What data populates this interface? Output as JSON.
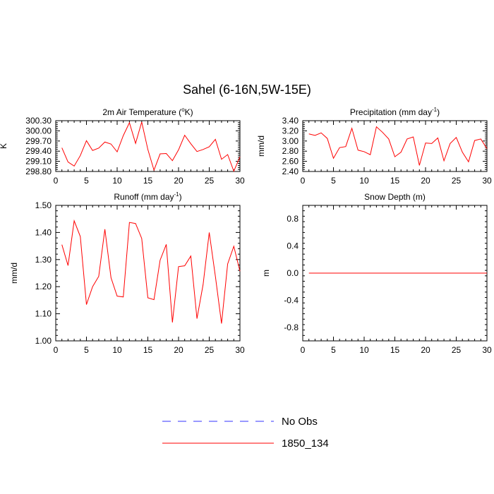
{
  "title": "Sahel (6-16N,5W-15E)",
  "legend": [
    {
      "label": "No Obs",
      "color": "#3333ff",
      "dash": true
    },
    {
      "label": "1850_134",
      "color": "#ff0000",
      "dash": false
    }
  ],
  "chart_data": [
    {
      "type": "line",
      "title": "2m Air Temperature (",
      "title_sup": "o",
      "title_tail": "K)",
      "ylabel": "K",
      "xlim": [
        0,
        30
      ],
      "ylim": [
        298.8,
        300.3
      ],
      "xticks": [
        "0",
        "5",
        "10",
        "15",
        "20",
        "25",
        "30"
      ],
      "yticks": [
        "298.80",
        "299.10",
        "299.40",
        "299.70",
        "300.00",
        "300.30"
      ],
      "series": [
        {
          "name": "1850_134",
          "color": "#ff0000",
          "x": [
            1,
            2,
            3,
            4,
            5,
            6,
            7,
            8,
            9,
            10,
            11,
            12,
            13,
            14,
            15,
            16,
            17,
            18,
            19,
            20,
            21,
            22,
            23,
            24,
            25,
            26,
            27,
            28,
            29,
            30
          ],
          "values": [
            299.5,
            299.08,
            298.96,
            299.27,
            299.71,
            299.42,
            299.49,
            299.67,
            299.61,
            299.38,
            299.86,
            300.24,
            299.63,
            300.26,
            299.45,
            298.84,
            299.32,
            299.33,
            299.12,
            299.44,
            299.87,
            299.62,
            299.39,
            299.45,
            299.53,
            299.75,
            299.16,
            299.3,
            298.81,
            299.23
          ]
        }
      ]
    },
    {
      "type": "line",
      "title": "Precipitation (mm day",
      "title_sup": "-1",
      "title_tail": ")",
      "ylabel": "mm/d",
      "xlim": [
        0,
        30
      ],
      "ylim": [
        2.4,
        3.4
      ],
      "xticks": [
        "0",
        "5",
        "10",
        "15",
        "20",
        "25",
        "30"
      ],
      "yticks": [
        "2.40",
        "2.60",
        "2.80",
        "3.00",
        "3.20",
        "3.40"
      ],
      "series": [
        {
          "name": "1850_134",
          "color": "#ff0000",
          "x": [
            1,
            2,
            3,
            4,
            5,
            6,
            7,
            8,
            9,
            10,
            11,
            12,
            13,
            14,
            15,
            16,
            17,
            18,
            19,
            20,
            21,
            22,
            23,
            24,
            25,
            26,
            27,
            28,
            29,
            30
          ],
          "values": [
            3.14,
            3.11,
            3.16,
            3.05,
            2.66,
            2.87,
            2.89,
            3.25,
            2.82,
            2.79,
            2.73,
            3.28,
            3.17,
            3.04,
            2.69,
            2.78,
            3.04,
            3.08,
            2.52,
            2.96,
            2.95,
            3.06,
            2.61,
            2.95,
            3.07,
            2.78,
            2.59,
            3.01,
            3.04,
            2.85
          ]
        }
      ]
    },
    {
      "type": "line",
      "title": "Runoff (mm day",
      "title_sup": "-1",
      "title_tail": ")",
      "ylabel": "mm/d",
      "xlim": [
        0,
        30
      ],
      "ylim": [
        1.0,
        1.5
      ],
      "xticks": [
        "0",
        "5",
        "10",
        "15",
        "20",
        "25",
        "30"
      ],
      "yticks": [
        "1.00",
        "1.10",
        "1.20",
        "1.30",
        "1.40",
        "1.50"
      ],
      "series": [
        {
          "name": "1850_134",
          "color": "#ff0000",
          "x": [
            1,
            2,
            3,
            4,
            5,
            6,
            7,
            8,
            9,
            10,
            11,
            12,
            13,
            14,
            15,
            16,
            17,
            18,
            19,
            20,
            21,
            22,
            23,
            24,
            25,
            26,
            27,
            28,
            29,
            30
          ],
          "values": [
            1.355,
            1.278,
            1.443,
            1.385,
            1.134,
            1.2,
            1.238,
            1.412,
            1.233,
            1.165,
            1.162,
            1.437,
            1.433,
            1.378,
            1.159,
            1.152,
            1.298,
            1.356,
            1.068,
            1.274,
            1.277,
            1.313,
            1.082,
            1.208,
            1.4,
            1.238,
            1.064,
            1.284,
            1.349,
            1.257
          ]
        }
      ]
    },
    {
      "type": "line",
      "title": "Snow Depth (m)",
      "title_sup": "",
      "title_tail": "",
      "ylabel": "m",
      "xlim": [
        0,
        30
      ],
      "ylim": [
        -1.0,
        1.0
      ],
      "xticks": [
        "0",
        "5",
        "10",
        "15",
        "20",
        "25",
        "30"
      ],
      "yticks": [
        "-0.8",
        "-0.4",
        "0.0",
        "0.4",
        "0.8"
      ],
      "series": [
        {
          "name": "1850_134",
          "color": "#ff0000",
          "x": [
            1,
            30
          ],
          "values": [
            0.0,
            0.0
          ]
        }
      ]
    }
  ]
}
